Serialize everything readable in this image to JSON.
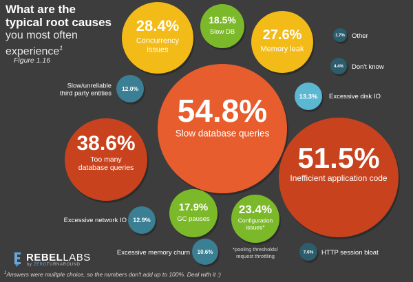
{
  "title": {
    "bold_line1": "What are the",
    "bold_line2": "typical root causes",
    "light_line1": "you most often",
    "light_line2": "experience",
    "light_line2_mark": "1"
  },
  "figure_label": "Figure 1.16",
  "logo": {
    "name_part1": "REBEL",
    "name_part2": "LABS",
    "by_line_prefix": "by ",
    "by_line_zero": "ZERO",
    "by_line_rest": "TURNAROUND"
  },
  "footnote": {
    "mark": "1",
    "text": "Answers were mulitple choice, so the numbers don't add up to 100%. Deal with it :)"
  },
  "colors": {
    "background": "#3d3d3d",
    "red_orange": "#e85d2d",
    "dark_red": "#c8421d",
    "yellow": "#f3bb17",
    "green": "#7cb92a",
    "blue": "#3a7f93",
    "light_blue": "#5bb7d2",
    "dark_blue": "#2c5d6d"
  },
  "chart_data": {
    "type": "bubble",
    "unit": "%",
    "series": [
      {
        "label": "Slow database queries",
        "value": 54.8,
        "color": "red_orange"
      },
      {
        "label": "Inefficient application code",
        "value": 51.5,
        "color": "dark_red"
      },
      {
        "label": "Too many database queries",
        "value": 38.6,
        "color": "dark_red"
      },
      {
        "label": "Concurrency issues",
        "value": 28.4,
        "color": "yellow"
      },
      {
        "label": "Memory leak",
        "value": 27.6,
        "color": "yellow"
      },
      {
        "label": "Configuration issues",
        "label_mark": "*",
        "value": 23.4,
        "color": "green",
        "note": "*pooling thresholds/ request throttling"
      },
      {
        "label": "Slow DB",
        "value": 18.5,
        "color": "green"
      },
      {
        "label": "GC pauses",
        "value": 17.9,
        "color": "green"
      },
      {
        "label": "Excessive disk IO",
        "value": 13.3,
        "color": "light_blue"
      },
      {
        "label": "Excessive network IO",
        "value": 12.9,
        "color": "blue"
      },
      {
        "label": "Slow/unreliable third party entities",
        "value": 12.0,
        "color": "blue"
      },
      {
        "label": "Excessive memory churn",
        "value": 10.6,
        "color": "blue"
      },
      {
        "label": "HTTP session bloat",
        "value": 7.6,
        "color": "dark_blue"
      },
      {
        "label": "Don't know",
        "value": 4.4,
        "color": "dark_blue"
      },
      {
        "label": "Other",
        "value": 1.7,
        "color": "dark_blue"
      }
    ]
  }
}
